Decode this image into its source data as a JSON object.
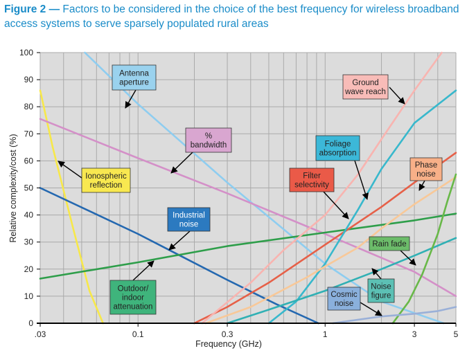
{
  "caption": {
    "figure_label": "Figure 2",
    "dash": " — ",
    "text": "Factors to be considered in the choice of the best frequency for wireless broadband access systems to serve sparsely populated rural areas"
  },
  "chart_data": {
    "type": "line",
    "title": "Figure 2 — Factors to be considered in the choice of the best frequency for wireless broadband access systems to serve sparsely populated rural areas",
    "xlabel": "Frequency (GHz)",
    "ylabel": "Relative complexity/cost (%)",
    "x_scale": "log",
    "xlim": [
      0.03,
      5
    ],
    "ylim": [
      0,
      100
    ],
    "grid": true,
    "x_tick_labels": [
      ".03",
      "0.1",
      "0.3",
      "1",
      "3",
      "5"
    ],
    "x_ticks": [
      0.03,
      0.1,
      0.3,
      1,
      3,
      5
    ],
    "y_ticks": [
      0,
      10,
      20,
      30,
      40,
      50,
      60,
      70,
      80,
      90,
      100
    ],
    "series": [
      {
        "name": "Ionospheric reflection",
        "color": "#f7e84a",
        "x": [
          0.03,
          0.035,
          0.045,
          0.055,
          0.065
        ],
        "y": [
          86,
          65,
          35,
          12,
          0
        ]
      },
      {
        "name": "Industrial noise",
        "color": "#2468b0",
        "x": [
          0.03,
          0.1,
          0.3,
          0.55,
          0.92
        ],
        "y": [
          50,
          33,
          16,
          7,
          0
        ]
      },
      {
        "name": "Antenna aperture",
        "color": "#8ecdf0",
        "x": [
          0.052,
          0.1,
          0.3,
          1,
          2,
          4.3
        ],
        "y": [
          100,
          81,
          52,
          22,
          8,
          0
        ]
      },
      {
        "name": "% bandwidth",
        "color": "#d490c8",
        "x": [
          0.03,
          0.1,
          0.3,
          1,
          3,
          5
        ],
        "y": [
          75.5,
          61,
          48,
          33,
          19,
          10
        ]
      },
      {
        "name": "Outdoor/ indoor attenuation",
        "color": "#2e9e4a",
        "x": [
          0.03,
          0.1,
          0.3,
          1,
          3,
          5
        ],
        "y": [
          16.5,
          22.5,
          28.5,
          33.5,
          38,
          40.5
        ]
      },
      {
        "name": "Filter selectivity",
        "color": "#e66048",
        "x": [
          0.2,
          0.3,
          0.5,
          1,
          2,
          3,
          5
        ],
        "y": [
          0,
          6,
          15,
          29,
          43,
          52,
          63
        ]
      },
      {
        "name": "Foliage absorption",
        "color": "#38b8cc",
        "x": [
          0.5,
          0.7,
          1,
          1.5,
          2,
          3,
          5
        ],
        "y": [
          0,
          8,
          22,
          42,
          57,
          74,
          86
        ]
      },
      {
        "name": "Ground wave reach",
        "color": "#f8b4b0",
        "x": [
          0.22,
          0.4,
          0.6,
          1,
          1.5,
          2,
          3,
          4.2
        ],
        "y": [
          0,
          15,
          27,
          40,
          55,
          68,
          86,
          100
        ]
      },
      {
        "name": "Phase noise",
        "color": "#f8c898",
        "x": [
          0.23,
          0.4,
          0.8,
          1,
          1.5,
          2,
          3,
          5
        ],
        "y": [
          0,
          6,
          17,
          21,
          28,
          35,
          44,
          54
        ]
      },
      {
        "name": "Noise figure",
        "color": "#30b0b4",
        "x": [
          0.3,
          0.5,
          1,
          2,
          3,
          5
        ],
        "y": [
          0,
          5,
          12,
          20,
          25,
          31.5
        ]
      },
      {
        "name": "Rain fade",
        "color": "#68b848",
        "x": [
          2.3,
          2.8,
          3.3,
          4,
          4.5,
          5
        ],
        "y": [
          0,
          8,
          18,
          33,
          45,
          55
        ]
      },
      {
        "name": "Cosmic noise",
        "color": "#9ab0d8",
        "x": [
          1.1,
          1.5,
          2,
          3,
          4,
          5
        ],
        "y": [
          0,
          1.3,
          2.5,
          3.5,
          4.5,
          6
        ]
      }
    ],
    "annotations": [
      {
        "lines": [
          "Antenna",
          "aperture"
        ],
        "fill": "#9ad2ee",
        "series": "Antenna aperture"
      },
      {
        "lines": [
          "%",
          "bandwidth"
        ],
        "fill": "#d9a6d0",
        "series": "% bandwidth"
      },
      {
        "lines": [
          "Ionospheric",
          "reflection"
        ],
        "fill": "#f8e850",
        "series": "Ionospheric reflection"
      },
      {
        "lines": [
          "Industrial",
          "noise"
        ],
        "fill": "#2c7ac0",
        "series": "Industrial noise"
      },
      {
        "lines": [
          "Outdoor/",
          "indoor",
          "attenuation"
        ],
        "fill": "#3fb47c",
        "series": "Outdoor/ indoor attenuation"
      },
      {
        "lines": [
          "Ground",
          "wave reach"
        ],
        "fill": "#f8bcb8",
        "series": "Ground wave reach"
      },
      {
        "lines": [
          "Foliage",
          "absorption"
        ],
        "fill": "#3cb8d8",
        "series": "Foliage absorption"
      },
      {
        "lines": [
          "Filter",
          "selectivity"
        ],
        "fill": "#ea5a48",
        "series": "Filter selectivity"
      },
      {
        "lines": [
          "Phase",
          "noise"
        ],
        "fill": "#f8b088",
        "series": "Phase noise"
      },
      {
        "lines": [
          "Rain fade"
        ],
        "fill": "#6cbc6a",
        "series": "Rain fade"
      },
      {
        "lines": [
          "Noise",
          "figure"
        ],
        "fill": "#5cc0b4",
        "series": "Noise figure"
      },
      {
        "lines": [
          "Cosmic",
          "noise"
        ],
        "fill": "#8ab0dc",
        "series": "Cosmic noise"
      }
    ],
    "plot_background": "#dcdcdc",
    "grid_color": "#aaaaaa"
  }
}
